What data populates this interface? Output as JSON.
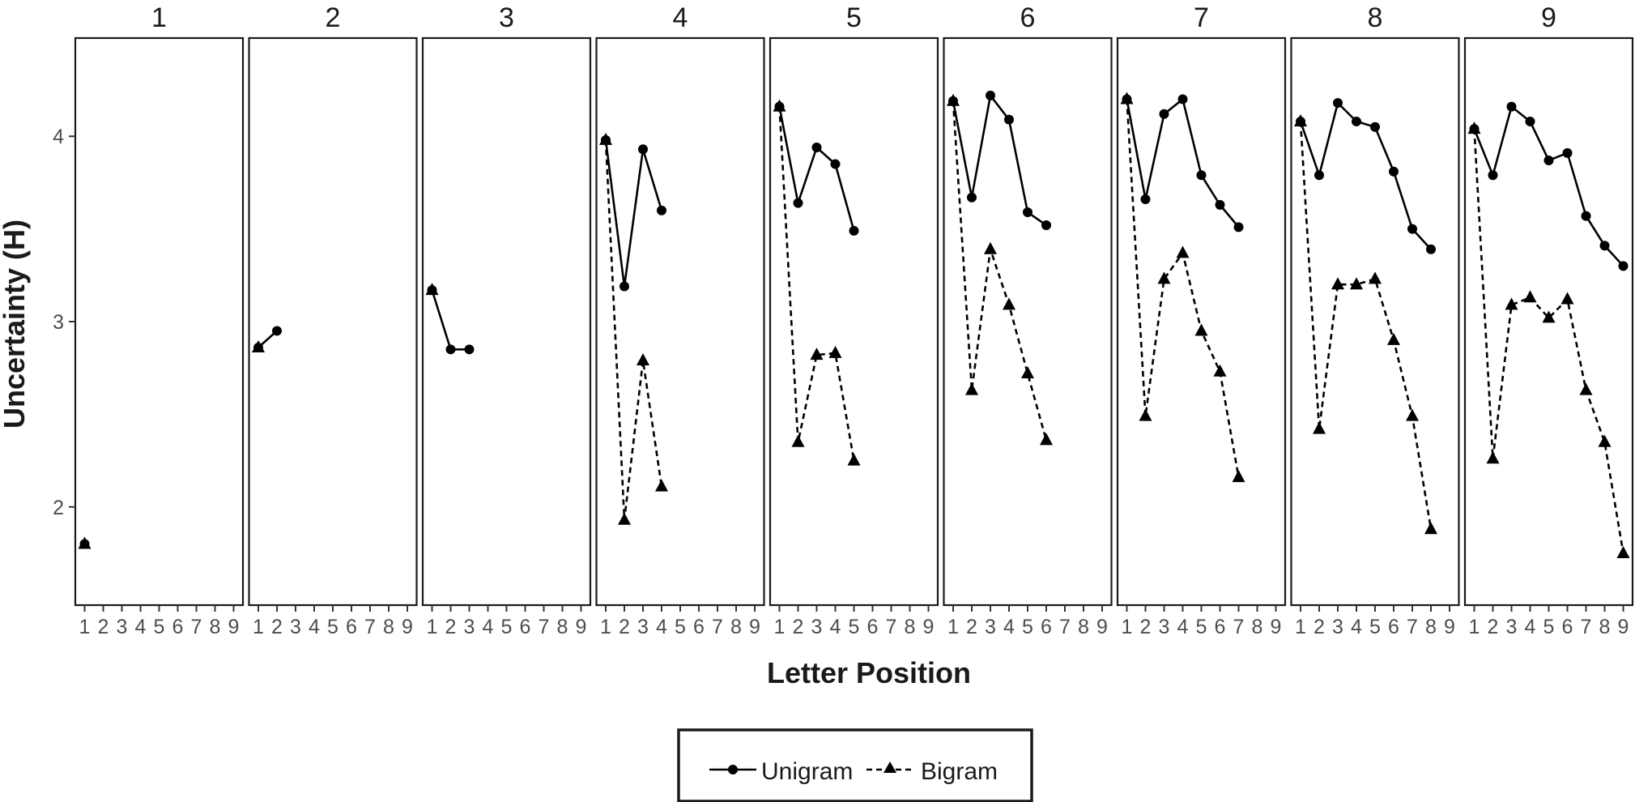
{
  "chart_data": {
    "type": "line",
    "title": "",
    "xlabel": "Letter Position",
    "ylabel": "Uncertainty (H)",
    "x_ticks": [
      1,
      2,
      3,
      4,
      5,
      6,
      7,
      8,
      9
    ],
    "y_ticks": [
      2,
      3,
      4
    ],
    "xlim": [
      0.5,
      9.5
    ],
    "ylim": [
      1.47,
      4.53
    ],
    "grid": false,
    "legend": {
      "position": "bottom",
      "entries": [
        "Unigram",
        "Bigram"
      ]
    },
    "panels": [
      {
        "label": "1",
        "series": [
          {
            "name": "Unigram",
            "marker": "circle",
            "line": "solid",
            "values": [
              1.8
            ]
          },
          {
            "name": "Bigram",
            "marker": "triangle",
            "line": "dashed",
            "values": [
              1.8
            ]
          }
        ]
      },
      {
        "label": "2",
        "series": [
          {
            "name": "Unigram",
            "marker": "circle",
            "line": "solid",
            "values": [
              2.86,
              2.95
            ]
          },
          {
            "name": "Bigram",
            "marker": "triangle",
            "line": "dashed",
            "values": [
              2.86
            ]
          }
        ]
      },
      {
        "label": "3",
        "series": [
          {
            "name": "Unigram",
            "marker": "circle",
            "line": "solid",
            "values": [
              3.17,
              2.85,
              2.85
            ]
          },
          {
            "name": "Bigram",
            "marker": "triangle",
            "line": "dashed",
            "values": [
              3.17
            ]
          }
        ]
      },
      {
        "label": "4",
        "series": [
          {
            "name": "Unigram",
            "marker": "circle",
            "line": "solid",
            "values": [
              3.98,
              3.19,
              3.93,
              3.6
            ]
          },
          {
            "name": "Bigram",
            "marker": "triangle",
            "line": "dashed",
            "values": [
              3.98,
              1.93,
              2.79,
              2.11
            ]
          }
        ]
      },
      {
        "label": "5",
        "series": [
          {
            "name": "Unigram",
            "marker": "circle",
            "line": "solid",
            "values": [
              4.16,
              3.64,
              3.94,
              3.85,
              3.49
            ]
          },
          {
            "name": "Bigram",
            "marker": "triangle",
            "line": "dashed",
            "values": [
              4.16,
              2.35,
              2.82,
              2.83,
              2.25
            ]
          }
        ]
      },
      {
        "label": "6",
        "series": [
          {
            "name": "Unigram",
            "marker": "circle",
            "line": "solid",
            "values": [
              4.19,
              3.67,
              4.22,
              4.09,
              3.59,
              3.52
            ]
          },
          {
            "name": "Bigram",
            "marker": "triangle",
            "line": "dashed",
            "values": [
              4.19,
              2.63,
              3.39,
              3.09,
              2.72,
              2.36
            ]
          }
        ]
      },
      {
        "label": "7",
        "series": [
          {
            "name": "Unigram",
            "marker": "circle",
            "line": "solid",
            "values": [
              4.2,
              3.66,
              4.12,
              4.2,
              3.79,
              3.63,
              3.51
            ]
          },
          {
            "name": "Bigram",
            "marker": "triangle",
            "line": "dashed",
            "values": [
              4.2,
              2.49,
              3.23,
              3.37,
              2.95,
              2.73,
              2.16
            ]
          }
        ]
      },
      {
        "label": "8",
        "series": [
          {
            "name": "Unigram",
            "marker": "circle",
            "line": "solid",
            "values": [
              4.08,
              3.79,
              4.18,
              4.08,
              4.05,
              3.81,
              3.5,
              3.39
            ]
          },
          {
            "name": "Bigram",
            "marker": "triangle",
            "line": "dashed",
            "values": [
              4.08,
              2.42,
              3.2,
              3.2,
              3.23,
              2.9,
              2.49,
              1.88
            ]
          }
        ]
      },
      {
        "label": "9",
        "series": [
          {
            "name": "Unigram",
            "marker": "circle",
            "line": "solid",
            "values": [
              4.04,
              3.79,
              4.16,
              4.08,
              3.87,
              3.91,
              3.57,
              3.41,
              3.3
            ]
          },
          {
            "name": "Bigram",
            "marker": "triangle",
            "line": "dashed",
            "values": [
              4.04,
              2.26,
              3.09,
              3.13,
              3.02,
              3.12,
              2.63,
              2.35,
              1.75
            ]
          }
        ]
      }
    ]
  }
}
